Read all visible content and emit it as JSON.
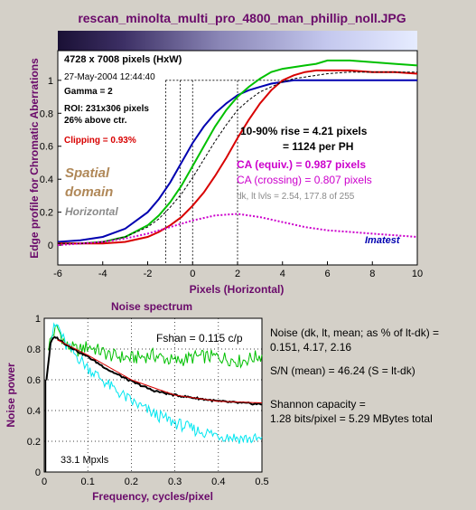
{
  "window": {
    "title": "rescan_minolta_multi_pro_4800_man_phillip_noll.JPG"
  },
  "top_panel": {
    "info": {
      "dims": "4728 x 7008 pixels (HxW)",
      "date": "27-May-2004 12:44:40",
      "gamma": "Gamma = 2",
      "roi": "ROI: 231x306 pixels",
      "above": "26% above ctr.",
      "clipping": "Clipping =  0.93%"
    },
    "annotations": {
      "spatial": "Spatial",
      "domain": "domain",
      "horizontal": "Horizontal",
      "rise": "10-90% rise = 4.21 pixels",
      "per_ph": "= 1124 per PH",
      "ca_equiv": "CA (equiv.) = 0.987 pixels",
      "ca_cross": "CA (crossing) = 0.807 pixels",
      "dk_lt": "dk, lt lvls = 2.54, 177.8 of 255",
      "brand": "Imatest"
    }
  },
  "noise_panel": {
    "title": "Noise spectrum",
    "fshan": "Fshan = 0.115 c/p",
    "mpxls": "33.1 Mpxls",
    "stats": {
      "line1": "Noise (dk, lt, mean; as % of lt-dk) =",
      "line2": "0.151,  4.17,  2.16",
      "line3": "S/N (mean) = 46.24  (S = lt-dk)",
      "line4": "Shannon capacity =",
      "line5": "1.28 bits/pixel = 5.29 MBytes total"
    }
  },
  "colors": {
    "background": "#d4d0c8",
    "title": "#6a0a6a",
    "red": "#d80000",
    "green": "#00c000",
    "blue": "#0000b0",
    "magenta": "#cc00cc",
    "cyan": "#00e6f0",
    "brown": "#b08858",
    "gray": "#8a8a8a"
  },
  "chart_data": [
    {
      "type": "line",
      "title": "",
      "xlabel": "Pixels (Horizontal)",
      "ylabel": "Edge profile for Chromatic Aberrations",
      "xlim": [
        -6,
        10
      ],
      "ylim": [
        -0.12,
        1.18
      ],
      "xticks": [
        "-6",
        "-4",
        "-2",
        "0",
        "2",
        "4",
        "6",
        "8",
        "10"
      ],
      "yticks": [
        "0",
        "0.2",
        "0.4",
        "0.6",
        "0.8",
        "1"
      ],
      "grid": false,
      "series": [
        {
          "name": "",
          "color": "#0000b0",
          "x": [
            -6,
            -5,
            -4,
            -3,
            -2,
            -1.5,
            -1,
            -0.5,
            0,
            0.5,
            1,
            1.5,
            2,
            2.5,
            3,
            3.5,
            4,
            4.5,
            5,
            6,
            8,
            10
          ],
          "y": [
            0.02,
            0.03,
            0.05,
            0.1,
            0.2,
            0.28,
            0.38,
            0.5,
            0.62,
            0.72,
            0.8,
            0.86,
            0.91,
            0.94,
            0.96,
            0.98,
            0.99,
            1.0,
            1.0,
            1.0,
            1.0,
            1.0
          ]
        },
        {
          "name": "",
          "color": "#00c000",
          "x": [
            -6,
            -5,
            -4,
            -3,
            -2,
            -1.5,
            -1,
            -0.5,
            0,
            0.5,
            1,
            1.5,
            2,
            2.5,
            3,
            3.5,
            4,
            4.5,
            5,
            5.5,
            6,
            7,
            8,
            9,
            10
          ],
          "y": [
            0.01,
            0.01,
            0.02,
            0.05,
            0.12,
            0.18,
            0.26,
            0.36,
            0.48,
            0.6,
            0.72,
            0.82,
            0.9,
            0.96,
            1.01,
            1.05,
            1.07,
            1.08,
            1.09,
            1.1,
            1.12,
            1.12,
            1.11,
            1.1,
            1.09
          ]
        },
        {
          "name": "",
          "color": "#d80000",
          "x": [
            -6,
            -5,
            -4,
            -3,
            -2,
            -1.5,
            -1,
            -0.5,
            0,
            0.5,
            1,
            1.5,
            2,
            2.5,
            3,
            3.5,
            4,
            4.5,
            5,
            5.5,
            6,
            7,
            8,
            9,
            10
          ],
          "y": [
            0.01,
            0.01,
            0.01,
            0.02,
            0.05,
            0.08,
            0.12,
            0.17,
            0.24,
            0.32,
            0.42,
            0.53,
            0.65,
            0.76,
            0.86,
            0.94,
            1.0,
            1.03,
            1.05,
            1.06,
            1.06,
            1.06,
            1.05,
            1.05,
            1.04
          ]
        },
        {
          "name": "",
          "color": "#000000",
          "dashed": true,
          "x": [
            -6,
            -5,
            -4,
            -3,
            -2,
            -1.5,
            -1,
            -0.5,
            0,
            0.5,
            1,
            1.5,
            2,
            2.5,
            3,
            3.5,
            4,
            4.5,
            5,
            6,
            7,
            8,
            9,
            10
          ],
          "y": [
            0.01,
            0.01,
            0.02,
            0.05,
            0.11,
            0.16,
            0.23,
            0.31,
            0.41,
            0.52,
            0.63,
            0.73,
            0.82,
            0.88,
            0.93,
            0.96,
            0.99,
            1.01,
            1.02,
            1.04,
            1.05,
            1.05,
            1.05,
            1.05
          ]
        },
        {
          "name": "",
          "color": "#cc00cc",
          "dotted": true,
          "x": [
            -6,
            -5,
            -4,
            -3,
            -2,
            -1,
            0,
            1,
            2,
            3,
            4,
            5,
            6,
            7,
            8,
            9,
            10
          ],
          "y": [
            0.0,
            0.01,
            0.02,
            0.04,
            0.07,
            0.11,
            0.15,
            0.18,
            0.19,
            0.17,
            0.14,
            0.11,
            0.09,
            0.08,
            0.07,
            0.06,
            0.05
          ]
        }
      ]
    },
    {
      "type": "line",
      "title": "Noise spectrum",
      "xlabel": "Frequency, cycles/pixel",
      "ylabel": "Noise power",
      "xlim": [
        0,
        0.5
      ],
      "ylim": [
        0,
        1
      ],
      "xticks": [
        "0",
        "0.1",
        "0.2",
        "0.3",
        "0.4",
        "0.5"
      ],
      "yticks": [
        "0",
        "0.2",
        "0.4",
        "0.6",
        "0.8",
        "1"
      ],
      "grid": true,
      "series": [
        {
          "name": "",
          "color": "#00c000",
          "x": [
            0.01,
            0.02,
            0.03,
            0.05,
            0.08,
            0.1,
            0.15,
            0.2,
            0.25,
            0.3,
            0.35,
            0.4,
            0.45,
            0.5
          ],
          "y": [
            0.82,
            0.9,
            0.94,
            0.82,
            0.79,
            0.82,
            0.76,
            0.74,
            0.76,
            0.72,
            0.75,
            0.75,
            0.72,
            0.76
          ]
        },
        {
          "name": "",
          "color": "#00e6f0",
          "x": [
            0.01,
            0.02,
            0.03,
            0.05,
            0.08,
            0.1,
            0.15,
            0.2,
            0.25,
            0.3,
            0.35,
            0.4,
            0.45,
            0.5
          ],
          "y": [
            0.78,
            0.92,
            0.96,
            0.82,
            0.74,
            0.68,
            0.56,
            0.46,
            0.38,
            0.32,
            0.27,
            0.24,
            0.22,
            0.21
          ]
        },
        {
          "name": "",
          "color": "#000000",
          "x": [
            0.005,
            0.015,
            0.025,
            0.05,
            0.08,
            0.1,
            0.15,
            0.2,
            0.25,
            0.3,
            0.35,
            0.4,
            0.45,
            0.5
          ],
          "y": [
            0.6,
            0.85,
            0.88,
            0.83,
            0.78,
            0.75,
            0.66,
            0.59,
            0.53,
            0.5,
            0.48,
            0.46,
            0.45,
            0.44
          ]
        },
        {
          "name": "",
          "color": "#d80000",
          "x": [
            0.03,
            0.1,
            0.2,
            0.3,
            0.4,
            0.5
          ],
          "y": [
            0.86,
            0.76,
            0.6,
            0.5,
            0.46,
            0.45
          ]
        }
      ]
    }
  ]
}
